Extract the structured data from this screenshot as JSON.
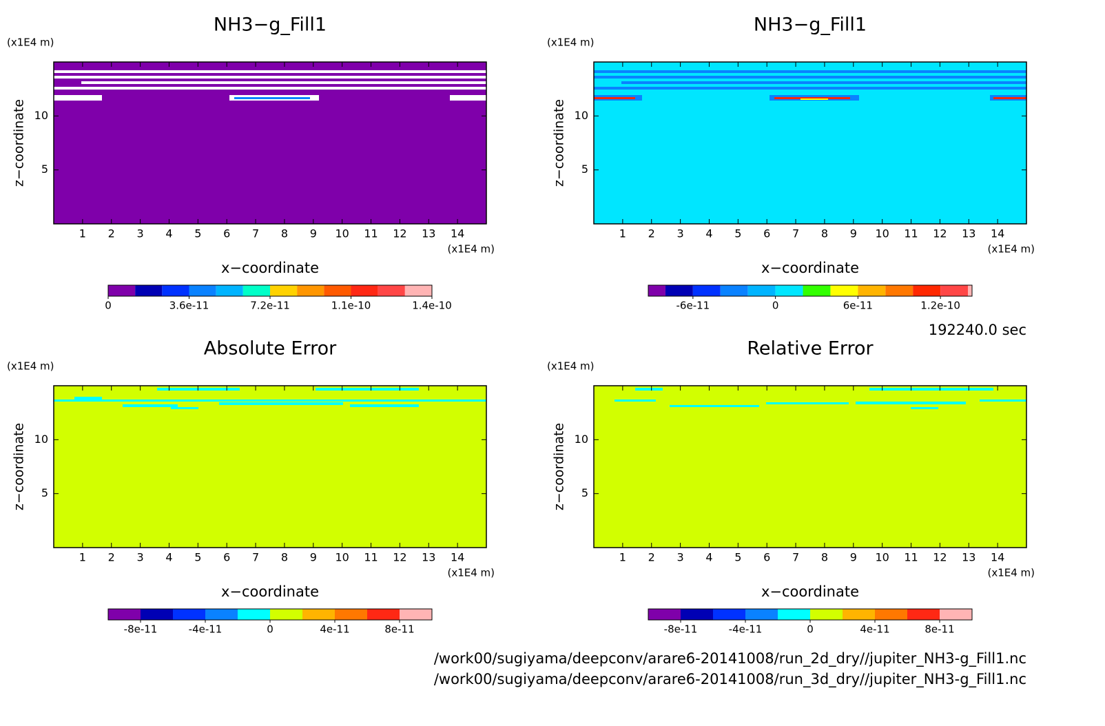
{
  "chart_data": [
    {
      "type": "contour",
      "title": "NH3−g_Fill1",
      "xlabel": "x−coordinate",
      "ylabel": "z−coordinate",
      "xunit": "(x1E4 m)",
      "yunit": "(x1E4 m)",
      "xlim": [
        0,
        15
      ],
      "ylim": [
        0,
        15
      ],
      "xticks": [
        1,
        2,
        3,
        4,
        5,
        6,
        7,
        8,
        9,
        10,
        11,
        12,
        13,
        14
      ],
      "yticks": [
        5,
        10
      ],
      "fill": "#7f00aa",
      "colorbar": {
        "lim": [
          0,
          1.44e-10
        ],
        "levels": [
          1.2e-11,
          2.4e-11,
          3.6e-11,
          4.8e-11,
          6e-11,
          7.2e-11,
          8.4e-11,
          9.6e-11,
          1.08e-10,
          1.2e-10,
          1.32e-10
        ],
        "colors": [
          "#7f00aa",
          "#0000b4",
          "#0032ff",
          "#0a82ff",
          "#00b4ff",
          "#00ffc8",
          "#ffd200",
          "#ff9600",
          "#ff5a00",
          "#ff2814",
          "#ff4646",
          "#ffb4b4"
        ],
        "ticks": [
          0,
          3.6e-11,
          7.2e-11,
          {
            "value": 1.08e-10,
            "label": "1.1e-10"
          },
          {
            "value": 1.44e-10,
            "label": "1.4e-10"
          }
        ]
      }
    },
    {
      "type": "contour",
      "title": "NH3−g_Fill1",
      "xlabel": "x−coordinate",
      "ylabel": "z−coordinate",
      "xunit": "(x1E4 m)",
      "yunit": "(x1E4 m)",
      "xlim": [
        0,
        15
      ],
      "ylim": [
        0,
        15
      ],
      "xticks": [
        1,
        2,
        3,
        4,
        5,
        6,
        7,
        8,
        9,
        10,
        11,
        12,
        13,
        14
      ],
      "yticks": [
        5,
        10
      ],
      "fill": "#00e6ff",
      "colorbar": {
        "lim": [
          -9.25e-11,
          1.43e-10
        ],
        "levels": [
          -8e-11,
          -6e-11,
          -4e-11,
          -2e-11,
          0,
          2e-11,
          4e-11,
          6e-11,
          8e-11,
          1e-10,
          1.2e-10,
          1.4e-10
        ],
        "colors": [
          "#7f00aa",
          "#0000b4",
          "#0032ff",
          "#0a82ff",
          "#00b4ff",
          "#00e6ff",
          "#32ff00",
          "#ffff00",
          "#ffb400",
          "#ff7800",
          "#ff2800",
          "#ff4646",
          "#ffb4b4"
        ],
        "ticks": [
          -6e-11,
          0,
          6e-11,
          1.2e-10
        ]
      }
    },
    {
      "type": "contour",
      "title": "Absolute Error",
      "xlabel": "x−coordinate",
      "ylabel": "z−coordinate",
      "xunit": "(x1E4 m)",
      "yunit": "(x1E4 m)",
      "xlim": [
        0,
        15
      ],
      "ylim": [
        0,
        15
      ],
      "xticks": [
        1,
        2,
        3,
        4,
        5,
        6,
        7,
        8,
        9,
        10,
        11,
        12,
        13,
        14
      ],
      "yticks": [
        5,
        10
      ],
      "fill": "#d2ff00",
      "colorbar": {
        "lim": [
          -1e-10,
          1e-10
        ],
        "levels": [
          -8e-11,
          -6e-11,
          -4e-11,
          -2e-11,
          0,
          2e-11,
          4e-11,
          6e-11,
          8e-11
        ],
        "colors": [
          "#7f00aa",
          "#0000b4",
          "#0032ff",
          "#0a82ff",
          "#00ffff",
          "#d2ff00",
          "#ffb400",
          "#ff7800",
          "#ff2814",
          "#ffb4b4"
        ],
        "ticks": [
          -8e-11,
          -4e-11,
          0,
          4e-11,
          8e-11
        ]
      }
    },
    {
      "type": "contour",
      "title": "Relative Error",
      "xlabel": "x−coordinate",
      "ylabel": "z−coordinate",
      "xunit": "(x1E4 m)",
      "yunit": "(x1E4 m)",
      "xlim": [
        0,
        15
      ],
      "ylim": [
        0,
        15
      ],
      "xticks": [
        1,
        2,
        3,
        4,
        5,
        6,
        7,
        8,
        9,
        10,
        11,
        12,
        13,
        14
      ],
      "yticks": [
        5,
        10
      ],
      "fill": "#d2ff00",
      "colorbar": {
        "lim": [
          -1e-10,
          1e-10
        ],
        "levels": [
          -8e-11,
          -6e-11,
          -4e-11,
          -2e-11,
          0,
          2e-11,
          4e-11,
          6e-11,
          8e-11
        ],
        "colors": [
          "#7f00aa",
          "#0000b4",
          "#0032ff",
          "#0a82ff",
          "#00ffff",
          "#d2ff00",
          "#ffb400",
          "#ff7800",
          "#ff2814",
          "#ffb4b4"
        ],
        "ticks": [
          -8e-11,
          -4e-11,
          0,
          4e-11,
          8e-11
        ]
      }
    }
  ],
  "time_label": "192240.0 sec",
  "files": [
    "/work00/sugiyama/deepconv/arare6-20141008/run_2d_dry//jupiter_NH3-g_Fill1.nc",
    "/work00/sugiyama/deepconv/arare6-20141008/run_3d_dry//jupiter_NH3-g_Fill1.nc"
  ]
}
